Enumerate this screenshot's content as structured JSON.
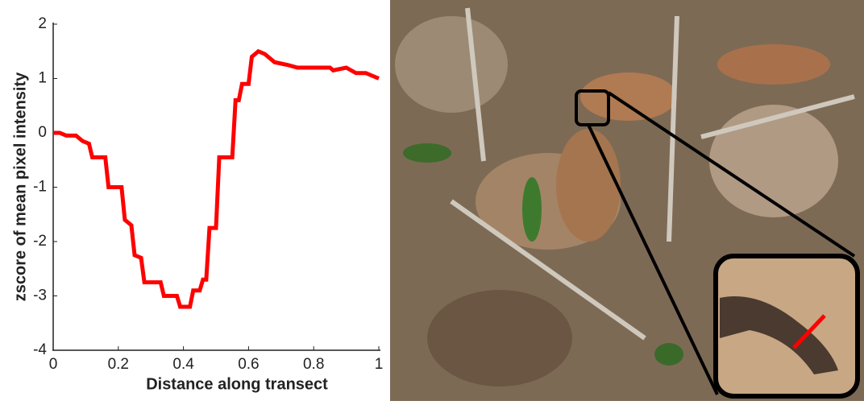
{
  "chart_data": {
    "type": "line",
    "xlabel": "Distance along transect",
    "ylabel": "zscore of mean pixel intensity",
    "x": [
      0,
      0.02,
      0.04,
      0.07,
      0.09,
      0.11,
      0.12,
      0.16,
      0.17,
      0.21,
      0.22,
      0.24,
      0.25,
      0.27,
      0.28,
      0.33,
      0.34,
      0.38,
      0.39,
      0.42,
      0.43,
      0.45,
      0.46,
      0.47,
      0.48,
      0.5,
      0.51,
      0.55,
      0.56,
      0.57,
      0.58,
      0.6,
      0.61,
      0.63,
      0.65,
      0.68,
      0.72,
      0.75,
      0.85,
      0.86,
      0.9,
      0.93,
      0.96,
      0.98,
      1.0
    ],
    "values": [
      0,
      0,
      -0.05,
      -0.05,
      -0.15,
      -0.2,
      -0.45,
      -0.45,
      -1.0,
      -1.0,
      -1.6,
      -1.7,
      -2.25,
      -2.3,
      -2.75,
      -2.75,
      -3.0,
      -3.0,
      -3.2,
      -3.2,
      -2.9,
      -2.9,
      -2.7,
      -2.7,
      -1.75,
      -1.75,
      -0.45,
      -0.45,
      0.6,
      0.6,
      0.9,
      0.9,
      1.4,
      1.5,
      1.45,
      1.3,
      1.25,
      1.2,
      1.2,
      1.15,
      1.2,
      1.1,
      1.1,
      1.05,
      1.0
    ],
    "color": "#ff0000",
    "xlim": [
      0,
      1
    ],
    "xticks": [
      0,
      0.2,
      0.4,
      0.6,
      0.8,
      1
    ],
    "ylim": [
      -4,
      2
    ],
    "yticks": [
      -4,
      -3,
      -2,
      -1,
      0,
      1,
      2
    ],
    "grid": false
  }
}
